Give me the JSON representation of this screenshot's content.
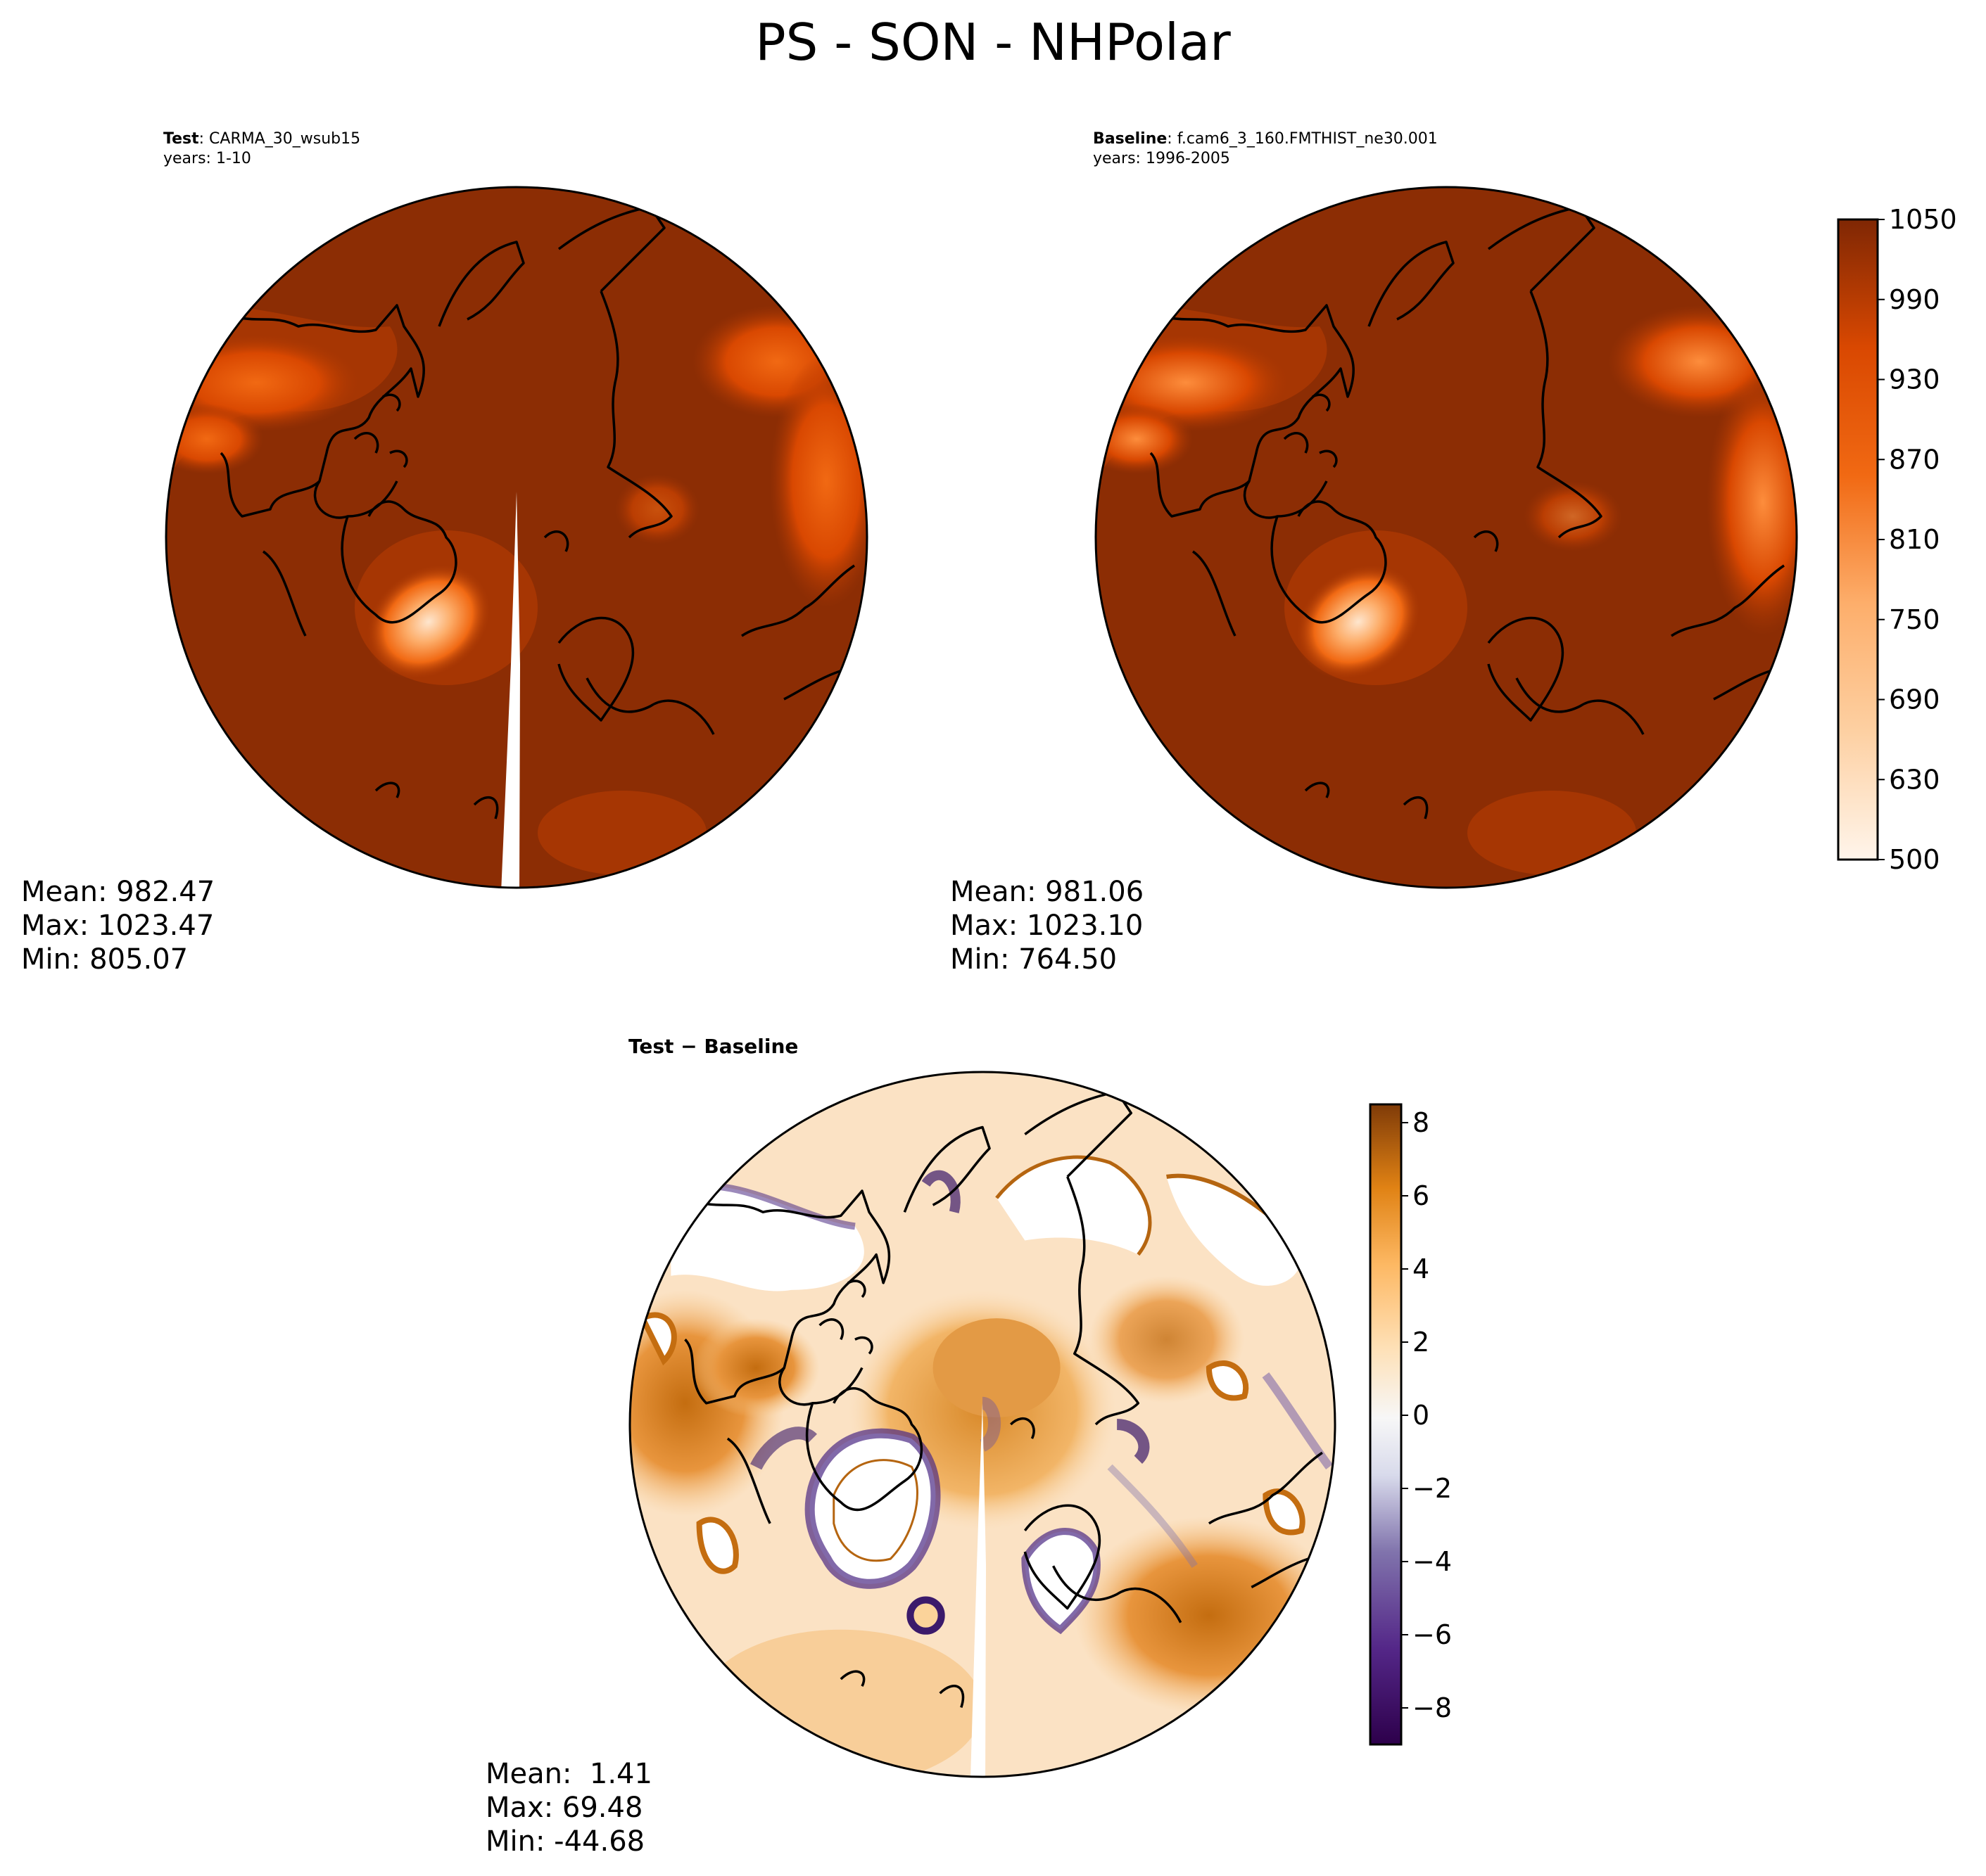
{
  "figure": {
    "title": "PS - SON - NHPolar"
  },
  "chart_data": [
    {
      "type": "heatmap",
      "panel": "test",
      "label_bold": "Test",
      "label_rest": ": CARMA_30_wsub15",
      "years": "years: 1-10",
      "colormap": "Oranges",
      "stats": {
        "mean": "Mean: 982.47",
        "max": "Max: 1023.47",
        "min": "Min: 805.07"
      }
    },
    {
      "type": "heatmap",
      "panel": "baseline",
      "label_bold": "Baseline",
      "label_rest": ": f.cam6_3_160.FMTHIST_ne30.001",
      "years": "years: 1996-2005",
      "colormap": "Oranges",
      "stats": {
        "mean": "Mean: 981.06",
        "max": "Max: 1023.10",
        "min": "Min: 764.50"
      },
      "colorbar": {
        "range": [
          500,
          1050
        ],
        "ticks": [
          "1050",
          "990",
          "930",
          "870",
          "810",
          "750",
          "690",
          "630",
          "500"
        ]
      }
    },
    {
      "type": "heatmap",
      "panel": "difference",
      "label": "Test − Baseline",
      "colormap": "PuOr_r",
      "stats": {
        "mean": "Mean:  1.41",
        "max": "Max: 69.48",
        "min": "Min: -44.68"
      },
      "colorbar": {
        "range": [
          -9,
          8.5
        ],
        "ticks": [
          "8",
          "6",
          "4",
          "2",
          "0",
          "−2",
          "−4",
          "−6",
          "−8"
        ]
      }
    }
  ],
  "colors": {
    "oranges_dark": "#8c2d04",
    "oranges_mid": "#e6550d",
    "oranges_light": "#fdd0a2",
    "puor_orange": "#c46d10",
    "puor_purple": "#3b1a6b",
    "coast": "#000000"
  }
}
